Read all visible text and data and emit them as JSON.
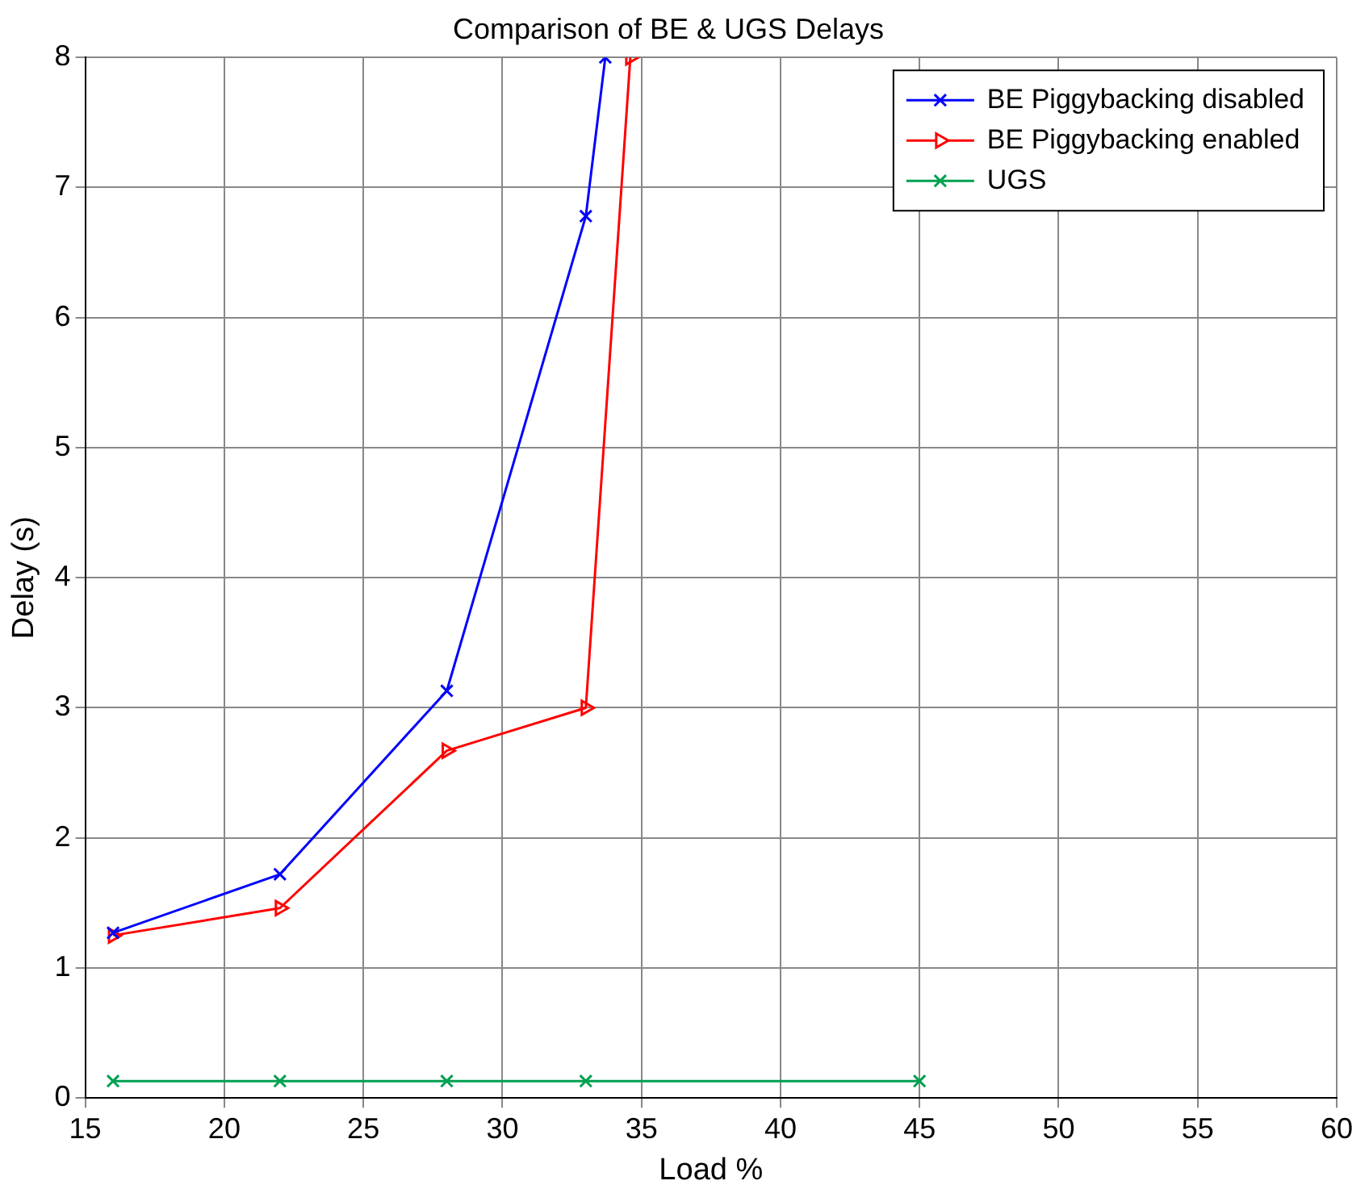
{
  "chart_data": {
    "type": "line",
    "title": "Comparison of BE & UGS Delays",
    "xlabel": "Load %",
    "ylabel": "Delay (s)",
    "xlim": [
      15,
      60
    ],
    "xticks": [
      15,
      20,
      25,
      30,
      35,
      40,
      45,
      50,
      55,
      60
    ],
    "ylim": [
      0,
      8
    ],
    "yticks": [
      0,
      1,
      2,
      3,
      4,
      5,
      6,
      7,
      8
    ],
    "grid": true,
    "legend": "top right",
    "line_style": "solid",
    "series": [
      {
        "name": "BE Piggybacking disabled",
        "color": "#0000ff",
        "marker": "cross",
        "x": [
          16,
          22,
          28,
          33,
          33.7
        ],
        "values": [
          1.27,
          1.72,
          3.13,
          6.78,
          8
        ]
      },
      {
        "name": "BE Piggybacking enabled",
        "color": "#ff0000",
        "marker": "triangle",
        "x": [
          16,
          22,
          28,
          33,
          34.6
        ],
        "values": [
          1.25,
          1.46,
          2.67,
          3.0,
          8
        ]
      },
      {
        "name": "UGS",
        "color": "#00a050",
        "marker": "cross",
        "x": [
          16,
          22,
          28,
          33,
          45
        ],
        "values": [
          0.13,
          0.13,
          0.13,
          0.13,
          0.13
        ]
      }
    ]
  }
}
